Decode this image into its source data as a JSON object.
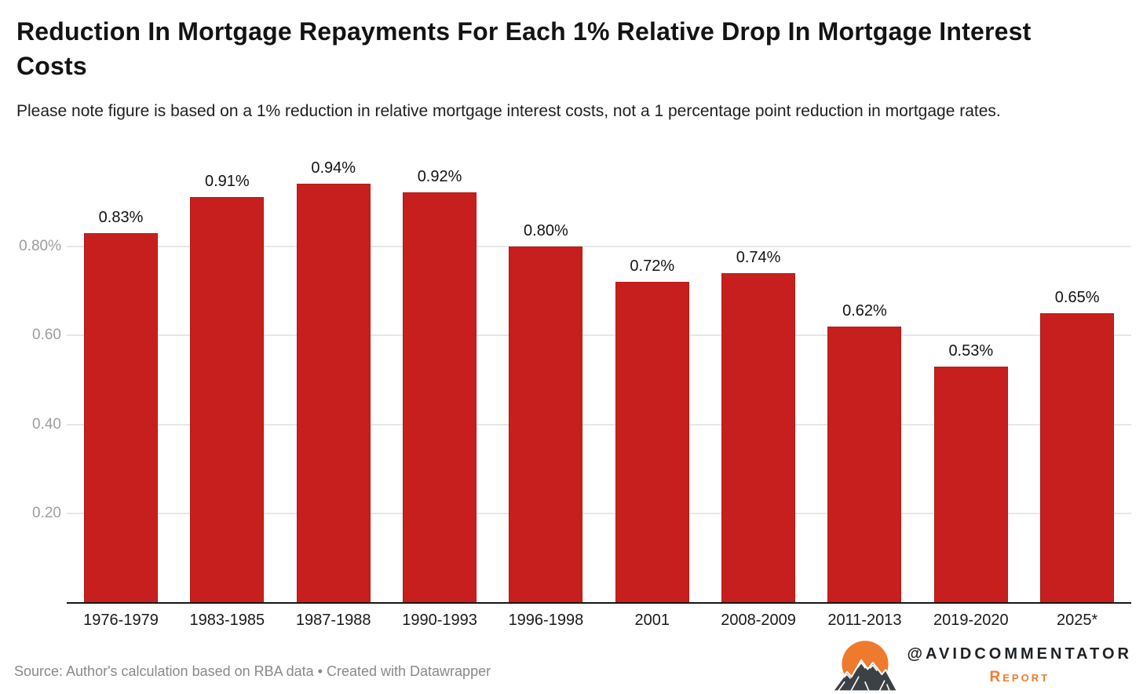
{
  "chart_data": {
    "type": "bar",
    "title": "Reduction In Mortgage Repayments For Each 1% Relative Drop In Mortgage Interest Costs",
    "subtitle": "Please note figure is based on a 1% reduction in relative mortgage interest costs, not a 1 percentage point reduction in mortgage rates.",
    "categories": [
      "1976-1979",
      "1983-1985",
      "1987-1988",
      "1990-1993",
      "1996-1998",
      "2001",
      "2008-2009",
      "2011-2013",
      "2019-2020",
      "2025*"
    ],
    "values": [
      0.83,
      0.91,
      0.94,
      0.92,
      0.8,
      0.72,
      0.74,
      0.62,
      0.53,
      0.65
    ],
    "value_labels": [
      "0.83%",
      "0.91%",
      "0.94%",
      "0.92%",
      "0.80%",
      "0.72%",
      "0.74%",
      "0.62%",
      "0.53%",
      "0.65%"
    ],
    "unit": "%",
    "ylim": [
      0,
      1.0
    ],
    "yticks": [
      {
        "value": 0.8,
        "label": "0.80%"
      },
      {
        "value": 0.6,
        "label": "0.60"
      },
      {
        "value": 0.4,
        "label": "0.40"
      },
      {
        "value": 0.2,
        "label": "0.20"
      }
    ],
    "grid": true,
    "legend": "none",
    "bar_color": "#c71f1e"
  },
  "footer": {
    "source": "Source: Author's calculation based on RBA data • Created with Datawrapper",
    "brand_handle": "@AVIDCOMMENTATOR",
    "brand_subtext": "Report",
    "brand_orange": "#ee7b2d",
    "mountain_dark": "#3c4145"
  }
}
